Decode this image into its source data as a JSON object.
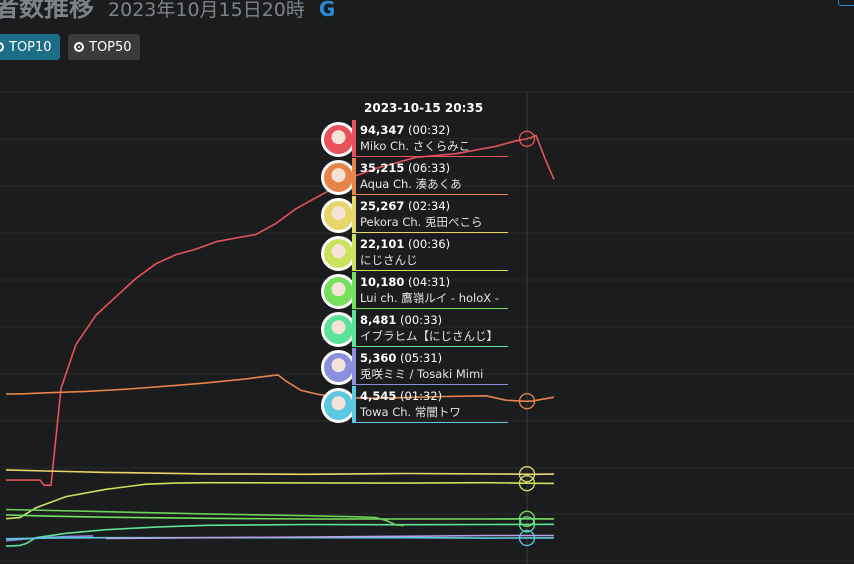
{
  "header": {
    "title": "者数推移",
    "subtitle": "2023年10月15日20時",
    "refresh_icon": "G"
  },
  "buttons": {
    "top10": "TOP10",
    "top50": "TOP50"
  },
  "colors": {
    "background": "#1b1c1d",
    "grid": "#2a2b2c",
    "accent": "#1c6d86"
  },
  "tooltip": {
    "time": "2023-10-15 20:35",
    "rows": [
      {
        "value": "94,347",
        "duration": "(00:32)",
        "name": "Miko Ch. さくらみこ",
        "color": "#e8525a",
        "avatar_icon": "miko-avatar-icon"
      },
      {
        "value": "35,215",
        "duration": "(06:33)",
        "name": "Aqua Ch. 湊あくあ",
        "color": "#e8834a",
        "avatar_icon": "aqua-avatar-icon"
      },
      {
        "value": "25,267",
        "duration": "(02:34)",
        "name": "Pekora Ch. 兎田ぺこら",
        "color": "#e8d66a",
        "avatar_icon": "pekora-avatar-icon"
      },
      {
        "value": "22,101",
        "duration": "(00:36)",
        "name": "にじさんじ",
        "color": "#c9e35c",
        "avatar_icon": "nijisanji-avatar-icon"
      },
      {
        "value": "10,180",
        "duration": "(04:31)",
        "name": "Lui ch. 鷹嶺ルイ - holoX -",
        "color": "#74e05c",
        "avatar_icon": "lui-avatar-icon"
      },
      {
        "value": "8,481",
        "duration": "(00:33)",
        "name": "イブラヒム【にじさんじ】",
        "color": "#5ce39a",
        "avatar_icon": "ibrahim-avatar-icon"
      },
      {
        "value": "5,360",
        "duration": "(05:31)",
        "name": "兎咲ミミ / Tosaki Mimi",
        "color": "#8a8fe0",
        "avatar_icon": "mimi-avatar-icon"
      },
      {
        "value": "4,545",
        "duration": "(01:32)",
        "name": "Towa Ch. 常闇トワ",
        "color": "#5cc9e3",
        "avatar_icon": "towa-avatar-icon"
      }
    ]
  },
  "chart_data": {
    "type": "line",
    "title": "",
    "xlabel": "",
    "ylabel": "",
    "grid": true,
    "legend": "tooltip",
    "hover_x": "2023-10-15 20:35",
    "series": [
      {
        "name": "Miko Ch. さくらみこ",
        "color": "#e8525a",
        "x": [
          0,
          14,
          28,
          34,
          38,
          45,
          55,
          70,
          90,
          110,
          130,
          150,
          170,
          190,
          210,
          230,
          250,
          270,
          290,
          310,
          330,
          350,
          370,
          390,
          410,
          430,
          450,
          470,
          490,
          510,
          520,
          525,
          530,
          540,
          548
        ],
        "values": [
          1000,
          1000,
          1000,
          1000,
          -400,
          -400,
          26000,
          38000,
          46000,
          51000,
          56000,
          60000,
          62500,
          64000,
          66000,
          67000,
          68000,
          71000,
          75000,
          78000,
          81000,
          84000,
          86000,
          87500,
          89000,
          89500,
          90000,
          91000,
          92000,
          93500,
          94000,
          94347,
          95000,
          88000,
          83000
        ]
      },
      {
        "name": "Aqua Ch. 湊あくあ",
        "color": "#e8834a",
        "x": [
          0,
          14,
          40,
          80,
          120,
          160,
          200,
          240,
          260,
          272,
          280,
          295,
          310,
          330,
          360,
          400,
          440,
          480,
          500,
          520,
          527,
          548
        ],
        "values": [
          24500,
          24500,
          24800,
          25200,
          25800,
          26600,
          27500,
          28600,
          29300,
          29700,
          28000,
          25500,
          24500,
          23600,
          23300,
          23500,
          23800,
          24000,
          22800,
          22500,
          22600,
          23600
        ]
      },
      {
        "name": "Pekora Ch. 兎田ぺこら",
        "color": "#e8d66a",
        "x": [
          0,
          40,
          100,
          200,
          300,
          400,
          480,
          527,
          548
        ],
        "values": [
          3800,
          3500,
          3100,
          2700,
          2600,
          2800,
          2700,
          2600,
          2650
        ]
      },
      {
        "name": "にじさんじ",
        "color": "#c9e35c",
        "x": [
          0,
          14,
          30,
          60,
          100,
          140,
          170,
          200,
          300,
          400,
          480,
          527,
          548
        ],
        "values": [
          -9500,
          -9200,
          -6500,
          -3500,
          -1500,
          -100,
          200,
          300,
          250,
          200,
          300,
          150,
          120
        ]
      },
      {
        "name": "Lui ch. 鷹嶺ルイ - holoX -",
        "color": "#74e05c",
        "x": [
          0,
          40,
          100,
          200,
          300,
          400,
          480,
          527,
          548
        ],
        "values": [
          -8500,
          -8800,
          -9100,
          -9400,
          -9600,
          -9600,
          -9600,
          -9540,
          -9560
        ]
      },
      {
        "name": "イブラヒム【にじさんじ】",
        "color": "#5ce39a",
        "x": [
          0,
          14,
          20,
          30,
          60,
          100,
          150,
          200,
          300,
          400,
          480,
          527,
          548
        ],
        "values": [
          -17000,
          -16800,
          -16300,
          -14700,
          -13500,
          -12500,
          -11800,
          -11300,
          -11100,
          -11150,
          -11100,
          -11059,
          -11040
        ]
      },
      {
        "name": "兎咲ミミ / Tosaki Mimi",
        "color": "#8a8fe0",
        "x": [
          0,
          30,
          60,
          87
        ],
        "values": [
          -15500,
          -14800,
          -14400,
          -14200
        ]
      },
      {
        "name": "Towa Ch. 常闇トワ",
        "color": "#5cc9e3",
        "x": [
          0,
          40,
          100,
          200,
          300,
          400,
          480,
          527,
          548
        ],
        "values": [
          -15000,
          -14800,
          -14700,
          -14700,
          -14700,
          -14700,
          -14800,
          -14760,
          -14750
        ]
      },
      {
        "name": "",
        "color": "#6cd25a",
        "x": [
          0,
          100,
          200,
          300,
          350,
          370,
          380,
          390,
          398
        ],
        "values": [
          -7000,
          -7600,
          -8200,
          -8700,
          -9000,
          -9200,
          -10000,
          -11200,
          -11400
        ]
      },
      {
        "name": "",
        "color": "#b8a0e0",
        "x": [
          100,
          200,
          300,
          400,
          480,
          527,
          548
        ],
        "values": [
          -14900,
          -14700,
          -14500,
          -14300,
          -14100,
          -14100,
          -14100
        ]
      }
    ],
    "ylim": [
      -17500,
      100000
    ],
    "xlim": [
      0,
      548
    ]
  }
}
